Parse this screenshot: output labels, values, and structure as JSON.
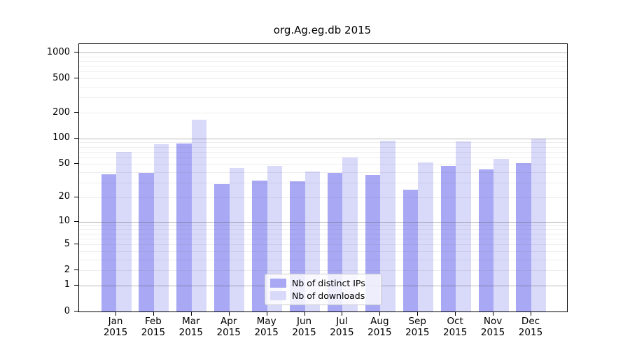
{
  "chart_data": {
    "type": "bar",
    "title": "org.Ag.eg.db 2015",
    "categories": [
      "Jan",
      "Feb",
      "Mar",
      "Apr",
      "May",
      "Jun",
      "Jul",
      "Aug",
      "Sep",
      "Oct",
      "Nov",
      "Dec"
    ],
    "x_year_label": "2015",
    "series": [
      {
        "name": "Nb of distinct IPs",
        "color": "#a8a8f4",
        "values": [
          38,
          39,
          88,
          29,
          32,
          31,
          39,
          37,
          25,
          48,
          43,
          51
        ]
      },
      {
        "name": "Nb of downloads",
        "color": "#d9d9fa",
        "values": [
          70,
          85,
          165,
          45,
          48,
          41,
          60,
          94,
          52,
          92,
          58,
          100
        ]
      }
    ],
    "y_ticks": [
      0,
      1,
      2,
      5,
      10,
      20,
      50,
      100,
      200,
      500,
      1000
    ],
    "gridlines": {
      "major": [
        1,
        10,
        100,
        1000
      ],
      "minor": [
        2,
        3,
        4,
        5,
        6,
        7,
        8,
        9,
        20,
        30,
        40,
        50,
        60,
        70,
        80,
        90,
        200,
        300,
        400,
        500,
        600,
        700,
        800,
        900
      ]
    },
    "scale": "log1p",
    "ylim": [
      0,
      1250
    ],
    "grid": true,
    "legend_position": "bottom-center",
    "colors": {
      "axis": "#000000",
      "major_grid": "#a8a8a8",
      "minor_grid": "#e6e6e6",
      "background": "#ffffff"
    }
  }
}
